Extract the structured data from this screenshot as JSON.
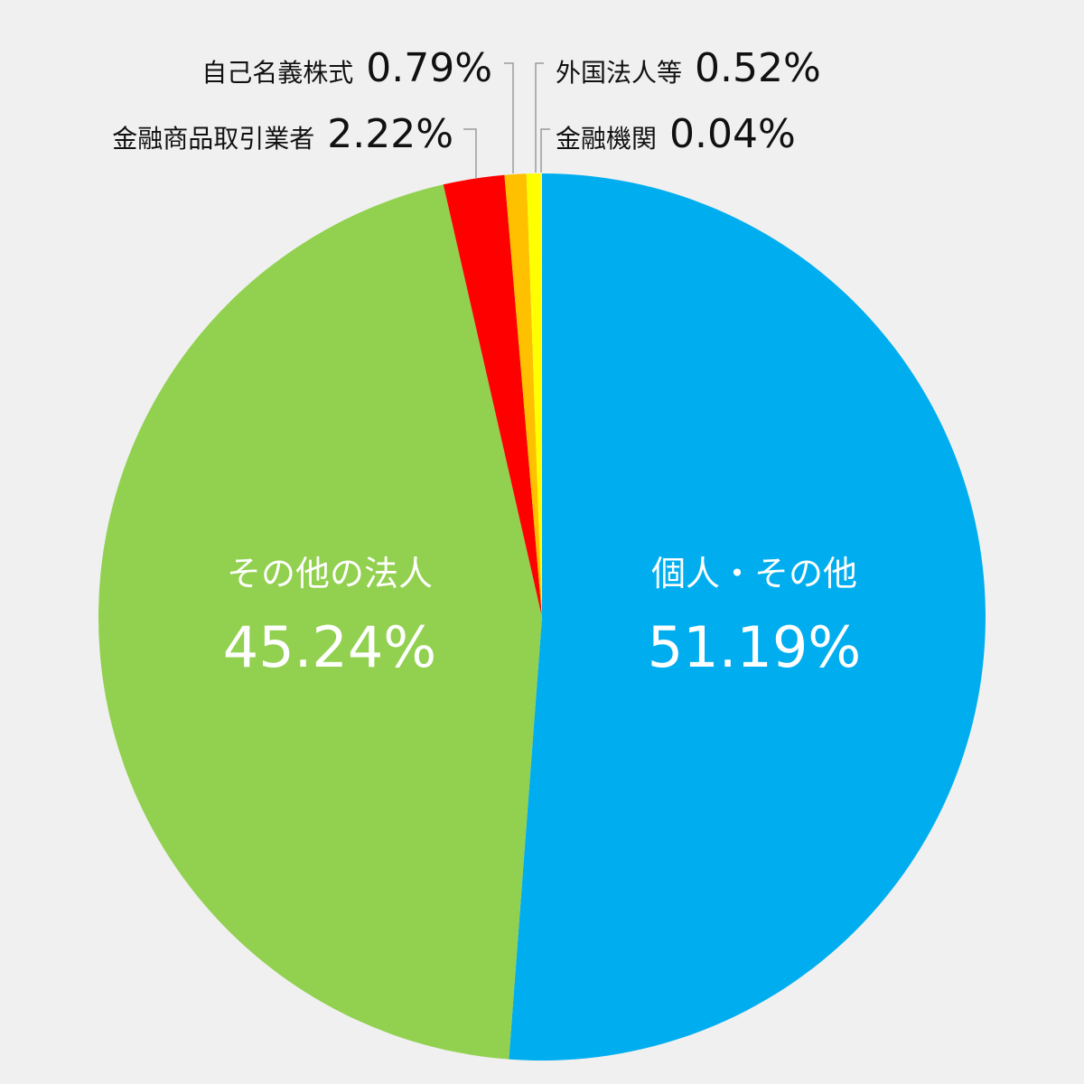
{
  "chart_data": {
    "type": "pie",
    "title": "",
    "start": "12 o'clock",
    "direction": "clockwise",
    "slices": [
      {
        "label": "個人・その他",
        "value": 51.19,
        "display": "51.19%",
        "color": "#00aeef"
      },
      {
        "label": "その他の法人",
        "value": 45.24,
        "display": "45.24%",
        "color": "#92d050"
      },
      {
        "label": "金融商品取引業者",
        "value": 2.22,
        "display": "2.22%",
        "color": "#ff0000"
      },
      {
        "label": "自己名義株式",
        "value": 0.79,
        "display": "0.79%",
        "color": "#ffc000"
      },
      {
        "label": "外国法人等",
        "value": 0.52,
        "display": "0.52%",
        "color": "#ffff00"
      },
      {
        "label": "金融機関",
        "value": 0.04,
        "display": "0.04%",
        "color": "#ffff99"
      }
    ]
  }
}
